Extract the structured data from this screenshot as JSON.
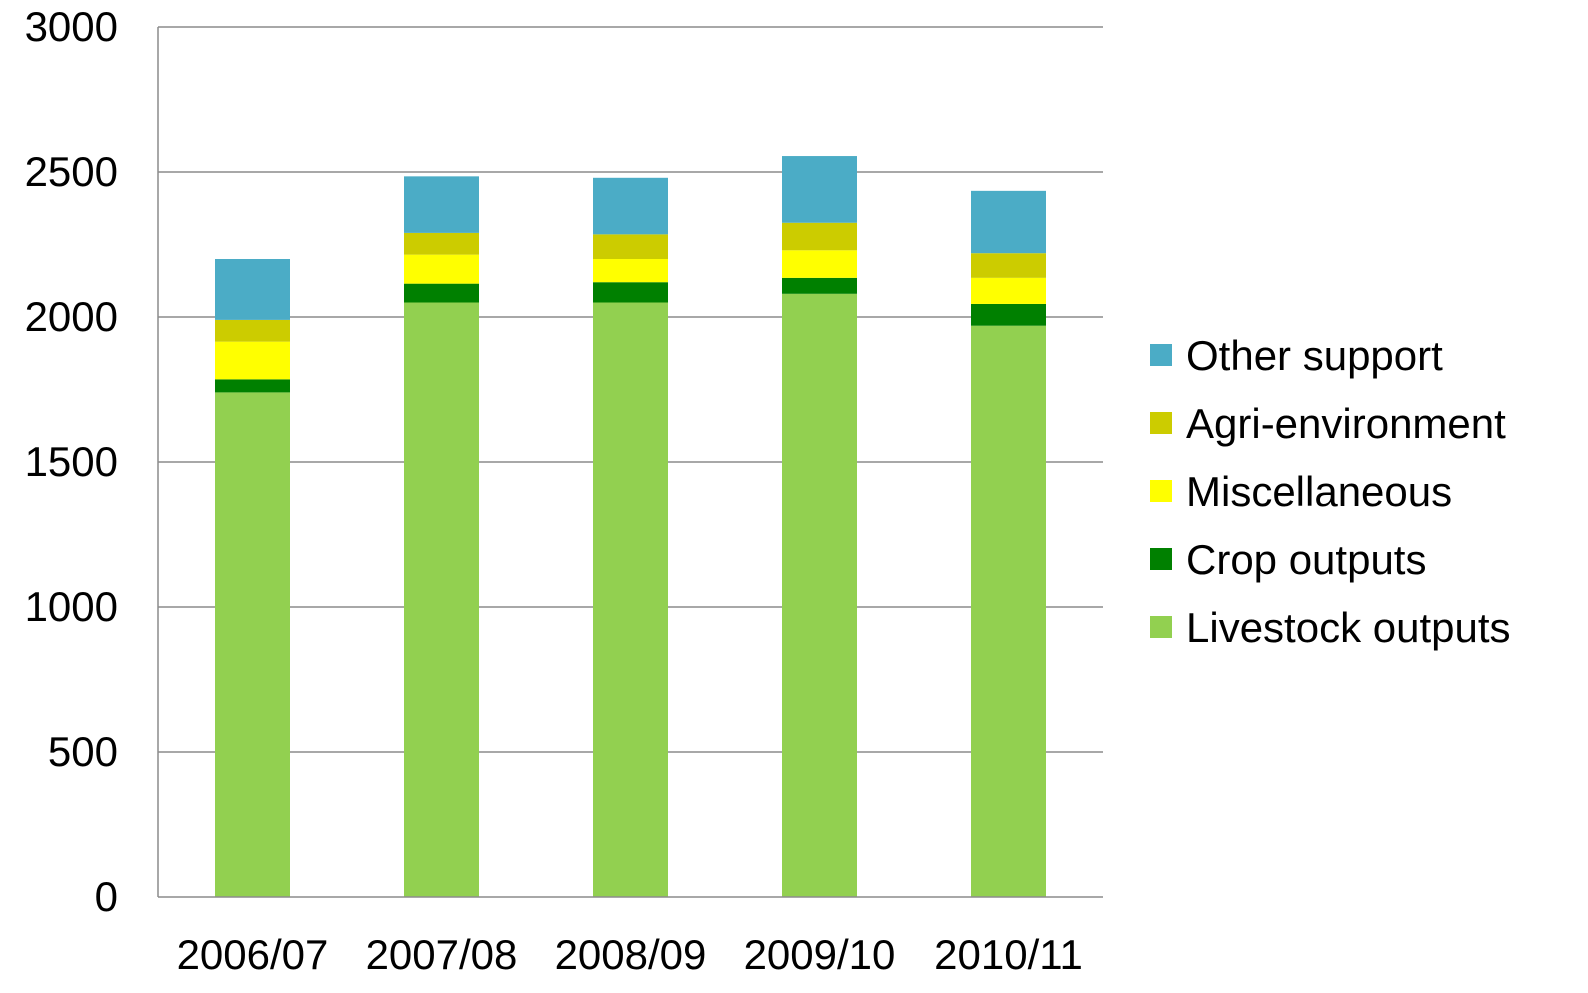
{
  "chart_data": {
    "type": "bar",
    "stacked": true,
    "title": "",
    "xlabel": "",
    "ylabel": "",
    "categories": [
      "2006/07",
      "2007/08",
      "2008/09",
      "2009/10",
      "2010/11"
    ],
    "series": [
      {
        "name": "Livestock outputs",
        "color": "#92d050",
        "values": [
          1740,
          2050,
          2050,
          2080,
          1970
        ]
      },
      {
        "name": "Crop outputs",
        "color": "#008000",
        "values": [
          45,
          65,
          70,
          55,
          75
        ]
      },
      {
        "name": "Miscellaneous",
        "color": "#ffff00",
        "values": [
          130,
          100,
          80,
          95,
          90
        ]
      },
      {
        "name": "Agri-environment",
        "color": "#cccc00",
        "values": [
          75,
          75,
          85,
          95,
          85
        ]
      },
      {
        "name": "Other support",
        "color": "#4bacc6",
        "values": [
          210,
          195,
          195,
          230,
          215
        ]
      }
    ],
    "ylim": [
      0,
      3000
    ],
    "yticks": [
      0,
      500,
      1000,
      1500,
      2000,
      2500,
      3000
    ],
    "grid": true,
    "legend": {
      "position": "right",
      "order": [
        "Other support",
        "Agri-environment",
        "Miscellaneous",
        "Crop outputs",
        "Livestock outputs"
      ]
    }
  }
}
